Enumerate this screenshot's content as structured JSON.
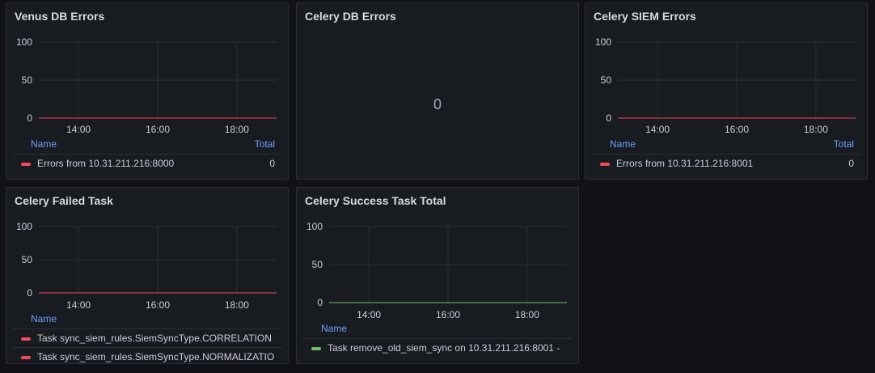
{
  "colors": {
    "red": "#f2495c",
    "green": "#73bf69",
    "grid": "#2c2f35",
    "axis_text": "#ccccdc",
    "legend_header": "#6e9fff"
  },
  "panels": {
    "venus_db": {
      "title": "Venus DB Errors",
      "legend_header_name": "Name",
      "legend_header_total": "Total",
      "legend_rows": [
        {
          "label": "Errors from 10.31.211.216:8000",
          "value": "0"
        }
      ]
    },
    "celery_db": {
      "title": "Celery DB Errors",
      "stat_value": "0"
    },
    "celery_siem": {
      "title": "Celery SIEM Errors",
      "legend_header_name": "Name",
      "legend_header_total": "Total",
      "legend_rows": [
        {
          "label": "Errors from 10.31.211.216:8001",
          "value": "0"
        }
      ]
    },
    "celery_failed": {
      "title": "Celery Failed Task",
      "legend_header_name": "Name",
      "legend_rows": [
        {
          "label": "Task sync_siem_rules.SiemSyncType.CORRELATION"
        },
        {
          "label": "Task sync_siem_rules.SiemSyncType.NORMALIZATIO"
        }
      ]
    },
    "celery_success": {
      "title": "Celery Success Task Total",
      "legend_header_name": "Name",
      "legend_rows": [
        {
          "label": "Task remove_old_siem_sync on 10.31.211.216:8001 -"
        }
      ]
    }
  },
  "chart_data": [
    {
      "panel": "Venus DB Errors",
      "type": "line",
      "x_ticks": [
        "14:00",
        "16:00",
        "18:00"
      ],
      "y_ticks": [
        0,
        50,
        100
      ],
      "ylim": [
        0,
        100
      ],
      "series": [
        {
          "name": "Errors from 10.31.211.216:8000",
          "color": "#f2495c",
          "values": [
            0,
            0
          ]
        }
      ]
    },
    {
      "panel": "Celery SIEM Errors",
      "type": "line",
      "x_ticks": [
        "14:00",
        "16:00",
        "18:00"
      ],
      "y_ticks": [
        0,
        50,
        100
      ],
      "ylim": [
        0,
        100
      ],
      "series": [
        {
          "name": "Errors from 10.31.211.216:8001",
          "color": "#f2495c",
          "values": [
            0,
            0
          ]
        }
      ]
    },
    {
      "panel": "Celery Failed Task",
      "type": "line",
      "x_ticks": [
        "14:00",
        "16:00",
        "18:00"
      ],
      "y_ticks": [
        0,
        50,
        100
      ],
      "ylim": [
        0,
        100
      ],
      "series": [
        {
          "name": "Task sync_siem_rules.SiemSyncType.CORRELATION",
          "color": "#f2495c",
          "values": [
            0,
            0
          ]
        }
      ]
    },
    {
      "panel": "Celery Success Task Total",
      "type": "line",
      "x_ticks": [
        "14:00",
        "16:00",
        "18:00"
      ],
      "y_ticks": [
        0,
        50,
        100
      ],
      "ylim": [
        0,
        100
      ],
      "series": [
        {
          "name": "Task remove_old_siem_sync on 10.31.211.216:8001 -",
          "color": "#73bf69",
          "values": [
            0,
            0
          ]
        }
      ]
    }
  ]
}
